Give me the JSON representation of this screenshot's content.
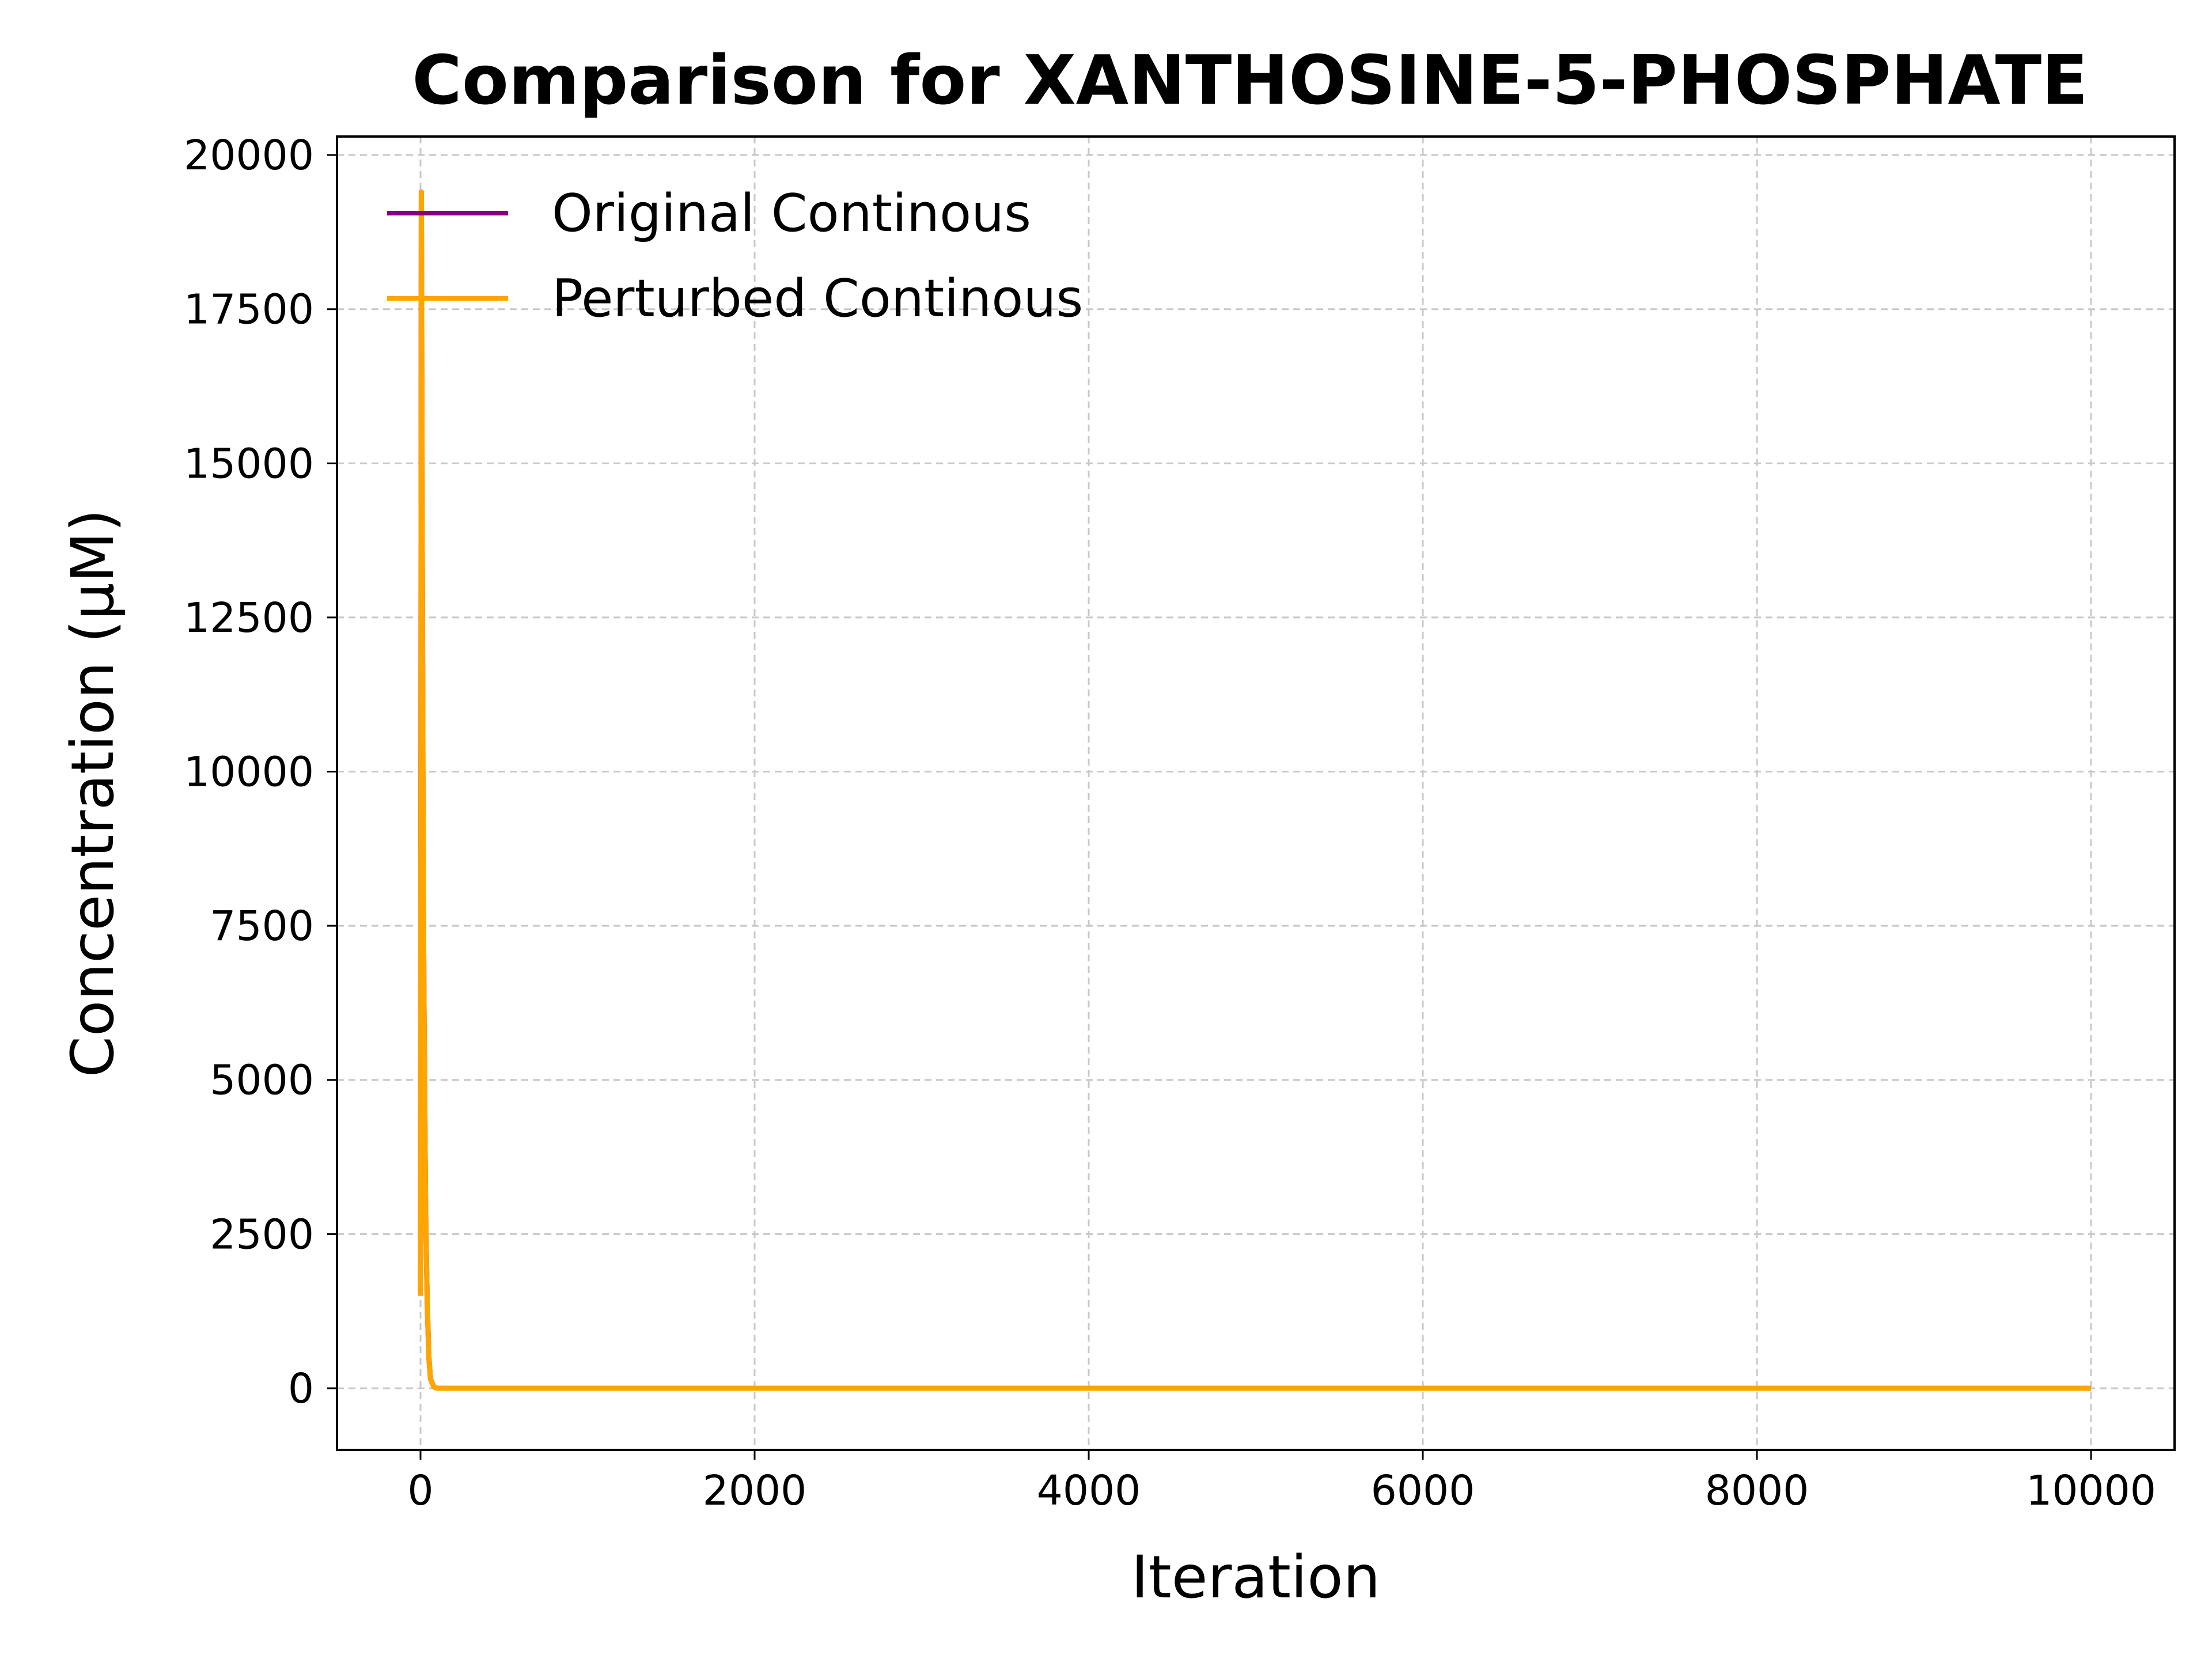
{
  "chart_data": {
    "type": "line",
    "title": "Comparison for XANTHOSINE-5-PHOSPHATE",
    "xlabel": "Iteration",
    "ylabel": "Concentration (μM)",
    "xlim": [
      -500,
      10500
    ],
    "ylim": [
      -1000,
      20300
    ],
    "xticks": [
      0,
      2000,
      4000,
      6000,
      8000,
      10000
    ],
    "yticks": [
      0,
      2500,
      5000,
      7500,
      10000,
      12500,
      15000,
      17500,
      20000
    ],
    "grid": true,
    "legend_position": "top-left",
    "series": [
      {
        "name": "Original Continous",
        "color": "#800080",
        "x": [
          0,
          5,
          10,
          15,
          20,
          30,
          40,
          50,
          60,
          80,
          100,
          500,
          1000,
          5000,
          10000
        ],
        "y": [
          1500,
          19400,
          14000,
          9500,
          6500,
          3000,
          1400,
          500,
          150,
          20,
          0,
          0,
          0,
          0,
          0
        ]
      },
      {
        "name": "Perturbed Continous",
        "color": "#ffa500",
        "x": [
          0,
          5,
          10,
          15,
          20,
          30,
          40,
          50,
          60,
          80,
          100,
          500,
          1000,
          5000,
          10000
        ],
        "y": [
          1500,
          19400,
          14000,
          9500,
          6500,
          3000,
          1400,
          500,
          150,
          20,
          0,
          0,
          0,
          0,
          0
        ]
      }
    ]
  }
}
